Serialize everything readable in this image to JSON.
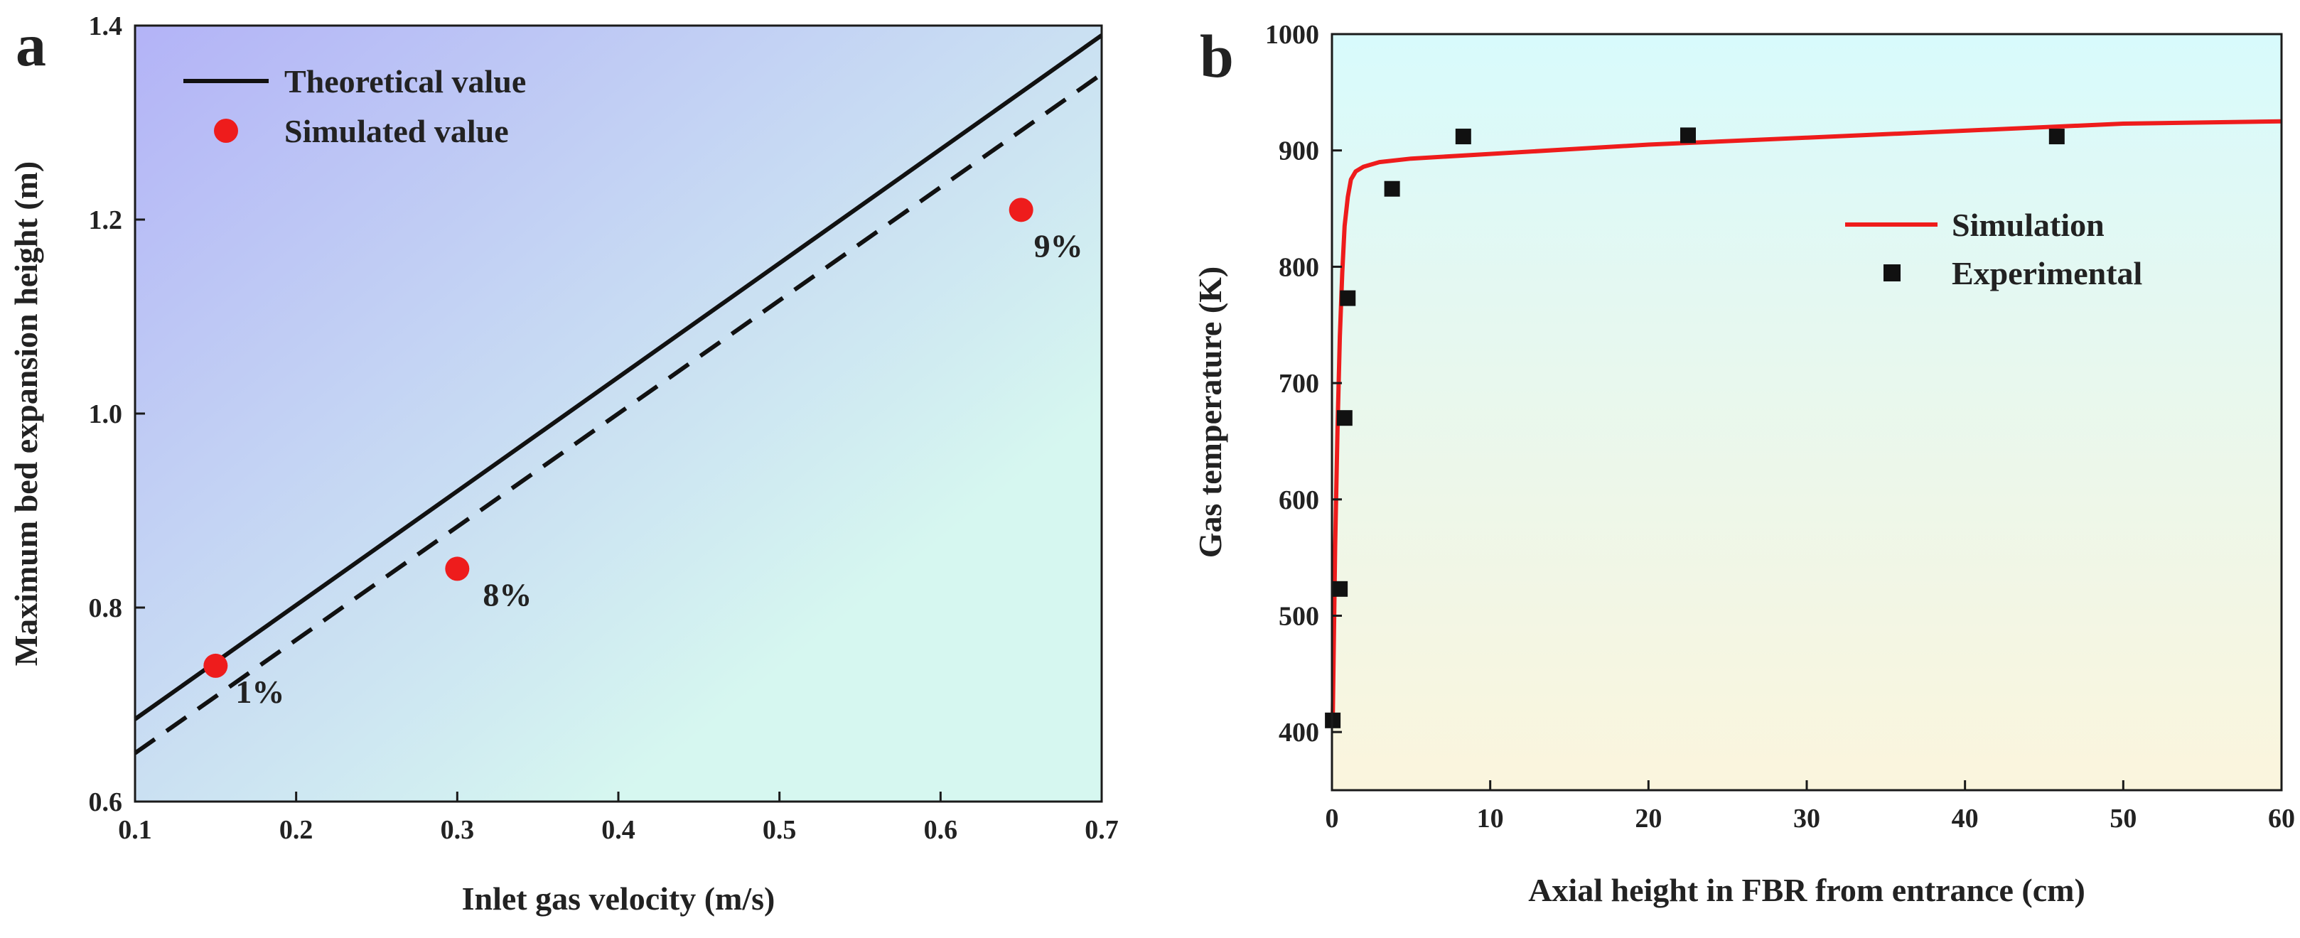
{
  "chart_data": [
    {
      "panel": "a",
      "type": "line",
      "xlabel": "Inlet gas velocity (m/s)",
      "ylabel": "Maximum bed expansion height (m)",
      "xlim": [
        0.1,
        0.7
      ],
      "ylim": [
        0.6,
        1.4
      ],
      "xticks": [
        0.1,
        0.2,
        0.3,
        0.4,
        0.5,
        0.6,
        0.7
      ],
      "xtick_labels": [
        "0.1",
        "0.2",
        "0.3",
        "0.4",
        "0.5",
        "0.6",
        "0.7"
      ],
      "yticks": [
        0.6,
        0.8,
        1.0,
        1.2,
        1.4
      ],
      "ytick_labels": [
        "0.6",
        "0.8",
        "1.0",
        "1.2",
        "1.4"
      ],
      "legend_position": "top-left",
      "series": [
        {
          "name": "Theoretical value",
          "kind": "line",
          "style": "solid",
          "color": "#111111",
          "x": [
            0.1,
            0.7
          ],
          "y": [
            0.685,
            1.39
          ]
        },
        {
          "name": "",
          "kind": "line",
          "style": "dashed",
          "color": "#111111",
          "x": [
            0.1,
            0.7
          ],
          "y": [
            0.65,
            1.35
          ]
        },
        {
          "name": "Simulated value",
          "kind": "scatter",
          "color": "#ee1c1c",
          "x": [
            0.15,
            0.3,
            0.65
          ],
          "y": [
            0.74,
            0.84,
            1.21
          ]
        }
      ],
      "annotations": [
        {
          "text": "1%",
          "x": 0.15,
          "y": 0.74
        },
        {
          "text": "8%",
          "x": 0.3,
          "y": 0.84
        },
        {
          "text": "9%",
          "x": 0.65,
          "y": 1.21
        }
      ],
      "background": {
        "from": "#b3b3f7",
        "to": "#d6f7f0"
      }
    },
    {
      "panel": "b",
      "type": "line",
      "xlabel": "Axial height in FBR from entrance (cm)",
      "ylabel": "Gas temperature (K)",
      "xlim": [
        0,
        60
      ],
      "ylim": [
        350,
        1000
      ],
      "xticks": [
        0,
        10,
        20,
        30,
        40,
        50,
        60
      ],
      "xtick_labels": [
        "0",
        "10",
        "20",
        "30",
        "40",
        "50",
        "60"
      ],
      "yticks": [
        400,
        500,
        600,
        700,
        800,
        900,
        1000
      ],
      "ytick_labels": [
        "400",
        "500",
        "600",
        "700",
        "800",
        "900",
        "1000"
      ],
      "legend_position": "right",
      "series": [
        {
          "name": "Simulation",
          "kind": "line",
          "style": "solid",
          "color": "#ee1c1c",
          "x": [
            0.05,
            0.2,
            0.35,
            0.5,
            0.65,
            0.8,
            1.0,
            1.2,
            1.5,
            2.0,
            3.0,
            5.0,
            10,
            20,
            30,
            40,
            50,
            60
          ],
          "y": [
            410,
            560,
            660,
            740,
            795,
            835,
            860,
            875,
            882,
            886,
            890,
            893,
            897,
            905,
            911,
            917,
            923,
            925
          ]
        },
        {
          "name": "Experimental",
          "kind": "scatter",
          "color": "#111111",
          "x": [
            0.05,
            0.5,
            0.8,
            1.0,
            3.8,
            8.3,
            22.5,
            45.8
          ],
          "y": [
            410,
            523,
            670,
            773,
            867,
            912,
            913,
            912
          ]
        }
      ],
      "background": {
        "from": "#d8fafc",
        "to": "#fbf5dd"
      }
    }
  ]
}
